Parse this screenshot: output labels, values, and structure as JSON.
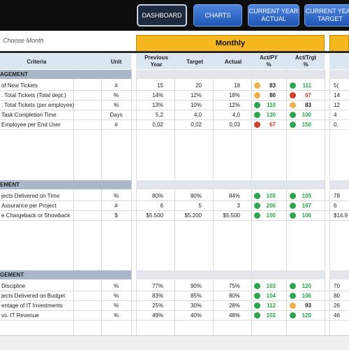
{
  "nav": {
    "dashboard": "DASHBOARD",
    "charts": "CHARTS",
    "current_year_actual": "CURRENT YEAR\nACTUAL",
    "current_year_target": "CURRENT YEAR\nTARGET"
  },
  "choose_month": "Choose Month",
  "monthly_title": "Monthly",
  "headers": {
    "criteria": "Criteria",
    "unit": "Unit",
    "previous_year": "Previous\nYear",
    "target": "Target",
    "actual": "Actual",
    "act_py": "Act/PY\n%",
    "act_trgt": "Act/Trgt\n%"
  },
  "colors": {
    "green": "#2ea44f",
    "orange": "#f0b050",
    "red": "#d23a2a",
    "teal": "#4f8f7c"
  },
  "sections": [
    {
      "title": "AGEMENT",
      "top": 100,
      "rows": [
        {
          "criteria": "of New Tickets",
          "unit": "#",
          "py": "15",
          "target": "20",
          "actual": "18",
          "apy": "83",
          "apy_color": "orange",
          "atg": "111",
          "atg_color": "green",
          "extra": "5("
        },
        {
          "criteria": ". Total Tickets (Total dept.)",
          "unit": "%",
          "py": "14%",
          "target": "12%",
          "actual": "18%",
          "apy": "80",
          "apy_color": "orange",
          "atg": "67",
          "atg_color": "red",
          "extra": "14"
        },
        {
          "criteria": ". Total Tickets (per employee)",
          "unit": "%",
          "py": "13%",
          "target": "10%",
          "actual": "12%",
          "apy": "110",
          "apy_color": "green",
          "atg": "83",
          "atg_color": "orange",
          "extra": "12"
        },
        {
          "criteria": "Task Completion Time",
          "unit": "Days",
          "py": "5,2",
          "target": "4,0",
          "actual": "4,0",
          "apy": "130",
          "apy_color": "green",
          "atg": "100",
          "atg_color": "green",
          "extra": "4"
        },
        {
          "criteria": "Employee per End User",
          "unit": "#",
          "py": "0,02",
          "target": "0,02",
          "actual": "0,03",
          "apy": "67",
          "apy_color": "red",
          "atg": "150",
          "atg_color": "green",
          "extra": "0,"
        }
      ]
    },
    {
      "title": "EMENT",
      "top": 258,
      "rows": [
        {
          "criteria": "jects Delivered on Time",
          "unit": "%",
          "py": "80%",
          "target": "80%",
          "actual": "84%",
          "apy": "105",
          "apy_color": "green",
          "atg": "105",
          "atg_color": "green",
          "extra": "78"
        },
        {
          "criteria": "Assurance per Project",
          "unit": "#",
          "py": "6",
          "target": "5",
          "actual": "3",
          "apy": "200",
          "apy_color": "green",
          "atg": "167",
          "atg_color": "green",
          "extra": "6"
        },
        {
          "criteria": "e Chargeback or Showback",
          "unit": "$",
          "py": "$5.500",
          "target": "$5.200",
          "actual": "$5.500",
          "apy": "100",
          "apy_color": "green",
          "atg": "106",
          "atg_color": "green",
          "extra": "$14.9"
        }
      ]
    },
    {
      "title": "GEMENT",
      "top": 387,
      "rows": [
        {
          "criteria": "Discipline",
          "unit": "%",
          "py": "77%",
          "target": "90%",
          "actual": "75%",
          "apy": "103",
          "apy_color": "green",
          "atg": "120",
          "atg_color": "green",
          "extra": "70"
        },
        {
          "criteria": "jects Delivered on Budget",
          "unit": "%",
          "py": "83%",
          "target": "85%",
          "actual": "80%",
          "apy": "104",
          "apy_color": "green",
          "atg": "106",
          "atg_color": "green",
          "extra": "80"
        },
        {
          "criteria": "entage of IT Investments",
          "unit": "%",
          "py": "25%",
          "target": "30%",
          "actual": "28%",
          "apy": "112",
          "apy_color": "green",
          "atg": "93",
          "atg_color": "orange",
          "extra": "26"
        },
        {
          "criteria": "vs. IT Revenue",
          "unit": "%",
          "py": "49%",
          "target": "40%",
          "actual": "48%",
          "apy": "102",
          "apy_color": "green",
          "atg": "120",
          "atg_color": "green",
          "extra": "46"
        }
      ]
    }
  ]
}
